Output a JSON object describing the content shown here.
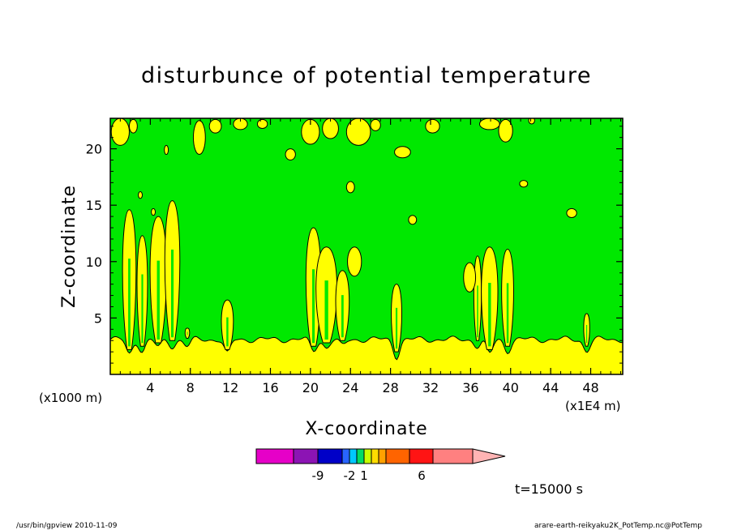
{
  "chart_data": {
    "type": "heatmap",
    "title": "disturbunce of potential temperature",
    "xlabel": "X-coordinate",
    "ylabel": "Z-coordinate",
    "x_ticks": [
      "4",
      "8",
      "12",
      "16",
      "20",
      "24",
      "28",
      "32",
      "36",
      "40",
      "44",
      "48"
    ],
    "x_tick_values": [
      4,
      8,
      12,
      16,
      20,
      24,
      28,
      32,
      36,
      40,
      44,
      48
    ],
    "y_ticks": [
      "5",
      "10",
      "15",
      "20"
    ],
    "y_tick_values": [
      5,
      10,
      15,
      20
    ],
    "xlim": [
      0,
      51.2
    ],
    "ylim": [
      0,
      22.7
    ],
    "x_unit_label": "(x1E4 m)",
    "y_unit_label": "(x1000 m)",
    "time_label": "t=15000 s",
    "colorbar": {
      "colors": [
        "#e600c8",
        "#8c14b4",
        "#0000c8",
        "#2864ff",
        "#00c8ff",
        "#00dc64",
        "#c8ff00",
        "#ffdc00",
        "#ffa000",
        "#ff6400",
        "#ff1414",
        "#ff8080",
        "#ffb4b4"
      ],
      "tick_labels": [
        "-9",
        "-2",
        "1",
        "6"
      ],
      "tick_values": [
        -9,
        -2,
        1,
        6
      ]
    },
    "field_colors": {
      "background": "#00e800",
      "positive": "#ffff00",
      "line": "#000000"
    },
    "plumes": [
      {
        "x": 1.9,
        "base": 2.2,
        "top": 14.6,
        "width": 0.9
      },
      {
        "x": 3.2,
        "base": 2.5,
        "top": 12.3,
        "width": 0.7
      },
      {
        "x": 4.8,
        "base": 2.8,
        "top": 14.0,
        "width": 1.1
      },
      {
        "x": 6.2,
        "base": 3.0,
        "top": 15.4,
        "width": 1.0
      },
      {
        "x": 7.7,
        "base": 3.2,
        "top": 4.1,
        "width": 0.3
      },
      {
        "x": 11.7,
        "base": 2.2,
        "top": 6.6,
        "width": 0.8
      },
      {
        "x": 20.3,
        "base": 2.5,
        "top": 13.0,
        "width": 1.0
      },
      {
        "x": 21.6,
        "base": 2.8,
        "top": 11.3,
        "width": 1.4
      },
      {
        "x": 23.2,
        "base": 3.0,
        "top": 9.2,
        "width": 0.9
      },
      {
        "x": 28.6,
        "base": 2.0,
        "top": 8.0,
        "width": 0.7
      },
      {
        "x": 36.7,
        "base": 3.0,
        "top": 10.5,
        "width": 0.5
      },
      {
        "x": 37.9,
        "base": 2.2,
        "top": 11.3,
        "width": 1.1
      },
      {
        "x": 39.7,
        "base": 2.5,
        "top": 11.1,
        "width": 0.8
      },
      {
        "x": 47.6,
        "base": 2.5,
        "top": 5.4,
        "width": 0.4
      }
    ],
    "blobs": [
      {
        "x": 1.0,
        "z": 21.5,
        "rx": 0.9,
        "rz": 1.2
      },
      {
        "x": 2.3,
        "z": 22.0,
        "rx": 0.4,
        "rz": 0.6
      },
      {
        "x": 8.9,
        "z": 21.0,
        "rx": 0.6,
        "rz": 1.5
      },
      {
        "x": 10.5,
        "z": 22.0,
        "rx": 0.6,
        "rz": 0.6
      },
      {
        "x": 13.0,
        "z": 22.2,
        "rx": 0.7,
        "rz": 0.5
      },
      {
        "x": 15.2,
        "z": 22.2,
        "rx": 0.5,
        "rz": 0.4
      },
      {
        "x": 20.0,
        "z": 21.5,
        "rx": 0.9,
        "rz": 1.1
      },
      {
        "x": 22.0,
        "z": 21.8,
        "rx": 0.8,
        "rz": 0.9
      },
      {
        "x": 24.8,
        "z": 21.5,
        "rx": 1.2,
        "rz": 1.2
      },
      {
        "x": 26.5,
        "z": 22.1,
        "rx": 0.5,
        "rz": 0.5
      },
      {
        "x": 32.2,
        "z": 22.0,
        "rx": 0.7,
        "rz": 0.6
      },
      {
        "x": 37.9,
        "z": 22.2,
        "rx": 1.0,
        "rz": 0.5
      },
      {
        "x": 39.5,
        "z": 21.6,
        "rx": 0.7,
        "rz": 1.0
      },
      {
        "x": 42.1,
        "z": 22.5,
        "rx": 0.3,
        "rz": 0.3
      },
      {
        "x": 18.0,
        "z": 19.5,
        "rx": 0.5,
        "rz": 0.5
      },
      {
        "x": 29.2,
        "z": 19.7,
        "rx": 0.8,
        "rz": 0.5
      },
      {
        "x": 5.6,
        "z": 19.9,
        "rx": 0.2,
        "rz": 0.4
      },
      {
        "x": 24.0,
        "z": 16.6,
        "rx": 0.4,
        "rz": 0.5
      },
      {
        "x": 41.3,
        "z": 16.9,
        "rx": 0.4,
        "rz": 0.3
      },
      {
        "x": 3.0,
        "z": 15.9,
        "rx": 0.2,
        "rz": 0.3
      },
      {
        "x": 4.3,
        "z": 14.4,
        "rx": 0.2,
        "rz": 0.3
      },
      {
        "x": 30.2,
        "z": 13.7,
        "rx": 0.4,
        "rz": 0.4
      },
      {
        "x": 46.1,
        "z": 14.3,
        "rx": 0.5,
        "rz": 0.4
      },
      {
        "x": 24.4,
        "z": 10.0,
        "rx": 0.7,
        "rz": 1.3
      },
      {
        "x": 35.9,
        "z": 8.6,
        "rx": 0.6,
        "rz": 1.3
      }
    ]
  },
  "footer": {
    "left_text": "/usr/bin/gpview   2010-11-09",
    "right_text": "arare-earth-reikyaku2K_PotTemp.nc@PotTemp"
  }
}
